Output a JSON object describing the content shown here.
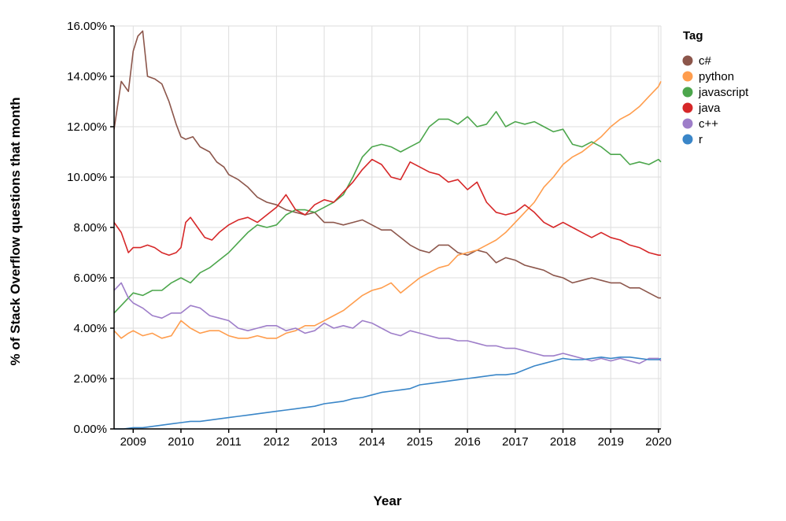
{
  "chart_data": {
    "type": "line",
    "title": "",
    "xlabel": "Year",
    "ylabel": "% of Stack Overflow questions that month",
    "xlim": [
      2008.6,
      2020.05
    ],
    "ylim": [
      0,
      16
    ],
    "x_ticks": [
      "2009",
      "2010",
      "2011",
      "2012",
      "2013",
      "2014",
      "2015",
      "2016",
      "2017",
      "2018",
      "2019",
      "2020"
    ],
    "y_ticks": [
      "0.00%",
      "2.00%",
      "4.00%",
      "6.00%",
      "8.00%",
      "10.00%",
      "12.00%",
      "14.00%",
      "16.00%"
    ],
    "grid": true,
    "legend": {
      "title": "Tag",
      "position": "right"
    },
    "series": [
      {
        "name": "c#",
        "color": "#8c564b",
        "x": [
          2008.6,
          2008.75,
          2008.9,
          2009.0,
          2009.1,
          2009.2,
          2009.3,
          2009.45,
          2009.6,
          2009.75,
          2009.9,
          2010.0,
          2010.1,
          2010.25,
          2010.4,
          2010.6,
          2010.75,
          2010.9,
          2011.0,
          2011.2,
          2011.4,
          2011.6,
          2011.8,
          2012.0,
          2012.2,
          2012.4,
          2012.6,
          2012.8,
          2013.0,
          2013.2,
          2013.4,
          2013.6,
          2013.8,
          2014.0,
          2014.2,
          2014.4,
          2014.6,
          2014.8,
          2015.0,
          2015.2,
          2015.4,
          2015.6,
          2015.8,
          2016.0,
          2016.2,
          2016.4,
          2016.6,
          2016.8,
          2017.0,
          2017.2,
          2017.4,
          2017.6,
          2017.8,
          2018.0,
          2018.2,
          2018.4,
          2018.6,
          2018.8,
          2019.0,
          2019.2,
          2019.4,
          2019.6,
          2019.8,
          2020.0,
          2020.05
        ],
        "values": [
          11.9,
          13.8,
          13.4,
          15.0,
          15.6,
          15.8,
          14.0,
          13.9,
          13.7,
          13.0,
          12.1,
          11.6,
          11.5,
          11.6,
          11.2,
          11.0,
          10.6,
          10.4,
          10.1,
          9.9,
          9.6,
          9.2,
          9.0,
          8.9,
          8.7,
          8.6,
          8.5,
          8.6,
          8.2,
          8.2,
          8.1,
          8.2,
          8.3,
          8.1,
          7.9,
          7.9,
          7.6,
          7.3,
          7.1,
          7.0,
          7.3,
          7.3,
          7.0,
          6.9,
          7.1,
          7.0,
          6.6,
          6.8,
          6.7,
          6.5,
          6.4,
          6.3,
          6.1,
          6.0,
          5.8,
          5.9,
          6.0,
          5.9,
          5.8,
          5.8,
          5.6,
          5.6,
          5.4,
          5.2,
          5.2
        ]
      },
      {
        "name": "python",
        "color": "#ff9d4d",
        "x": [
          2008.6,
          2008.75,
          2008.9,
          2009.0,
          2009.2,
          2009.4,
          2009.6,
          2009.8,
          2010.0,
          2010.2,
          2010.4,
          2010.6,
          2010.8,
          2011.0,
          2011.2,
          2011.4,
          2011.6,
          2011.8,
          2012.0,
          2012.2,
          2012.4,
          2012.6,
          2012.8,
          2013.0,
          2013.2,
          2013.4,
          2013.6,
          2013.8,
          2014.0,
          2014.2,
          2014.4,
          2014.6,
          2014.8,
          2015.0,
          2015.2,
          2015.4,
          2015.6,
          2015.8,
          2016.0,
          2016.2,
          2016.4,
          2016.6,
          2016.8,
          2017.0,
          2017.2,
          2017.4,
          2017.6,
          2017.8,
          2018.0,
          2018.2,
          2018.4,
          2018.6,
          2018.8,
          2019.0,
          2019.2,
          2019.4,
          2019.6,
          2019.8,
          2020.0,
          2020.05
        ],
        "values": [
          3.9,
          3.6,
          3.8,
          3.9,
          3.7,
          3.8,
          3.6,
          3.7,
          4.3,
          4.0,
          3.8,
          3.9,
          3.9,
          3.7,
          3.6,
          3.6,
          3.7,
          3.6,
          3.6,
          3.8,
          3.9,
          4.1,
          4.1,
          4.3,
          4.5,
          4.7,
          5.0,
          5.3,
          5.5,
          5.6,
          5.8,
          5.4,
          5.7,
          6.0,
          6.2,
          6.4,
          6.5,
          6.9,
          7.0,
          7.1,
          7.3,
          7.5,
          7.8,
          8.2,
          8.6,
          9.0,
          9.6,
          10.0,
          10.5,
          10.8,
          11.0,
          11.3,
          11.6,
          12.0,
          12.3,
          12.5,
          12.8,
          13.2,
          13.6,
          13.8
        ]
      },
      {
        "name": "javascript",
        "color": "#4ca64c",
        "x": [
          2008.6,
          2008.75,
          2008.9,
          2009.0,
          2009.2,
          2009.4,
          2009.6,
          2009.8,
          2010.0,
          2010.2,
          2010.4,
          2010.6,
          2010.8,
          2011.0,
          2011.2,
          2011.4,
          2011.6,
          2011.8,
          2012.0,
          2012.2,
          2012.4,
          2012.6,
          2012.8,
          2013.0,
          2013.2,
          2013.4,
          2013.6,
          2013.8,
          2014.0,
          2014.2,
          2014.4,
          2014.6,
          2014.8,
          2015.0,
          2015.2,
          2015.4,
          2015.6,
          2015.8,
          2016.0,
          2016.2,
          2016.4,
          2016.6,
          2016.8,
          2017.0,
          2017.2,
          2017.4,
          2017.6,
          2017.8,
          2018.0,
          2018.2,
          2018.4,
          2018.6,
          2018.8,
          2019.0,
          2019.2,
          2019.4,
          2019.6,
          2019.8,
          2020.0,
          2020.05
        ],
        "values": [
          4.6,
          4.9,
          5.2,
          5.4,
          5.3,
          5.5,
          5.5,
          5.8,
          6.0,
          5.8,
          6.2,
          6.4,
          6.7,
          7.0,
          7.4,
          7.8,
          8.1,
          8.0,
          8.1,
          8.5,
          8.7,
          8.7,
          8.6,
          8.8,
          9.0,
          9.3,
          10.0,
          10.8,
          11.2,
          11.3,
          11.2,
          11.0,
          11.2,
          11.4,
          12.0,
          12.3,
          12.3,
          12.1,
          12.4,
          12.0,
          12.1,
          12.6,
          12.0,
          12.2,
          12.1,
          12.2,
          12.0,
          11.8,
          11.9,
          11.3,
          11.2,
          11.4,
          11.2,
          10.9,
          10.9,
          10.5,
          10.6,
          10.5,
          10.7,
          10.6
        ]
      },
      {
        "name": "java",
        "color": "#d62728",
        "x": [
          2008.6,
          2008.75,
          2008.9,
          2009.0,
          2009.15,
          2009.3,
          2009.45,
          2009.6,
          2009.75,
          2009.9,
          2010.0,
          2010.1,
          2010.2,
          2010.35,
          2010.5,
          2010.65,
          2010.8,
          2011.0,
          2011.2,
          2011.4,
          2011.6,
          2011.8,
          2012.0,
          2012.2,
          2012.4,
          2012.6,
          2012.8,
          2013.0,
          2013.2,
          2013.4,
          2013.6,
          2013.8,
          2014.0,
          2014.2,
          2014.4,
          2014.6,
          2014.8,
          2015.0,
          2015.2,
          2015.4,
          2015.6,
          2015.8,
          2016.0,
          2016.2,
          2016.4,
          2016.6,
          2016.8,
          2017.0,
          2017.2,
          2017.4,
          2017.6,
          2017.8,
          2018.0,
          2018.2,
          2018.4,
          2018.6,
          2018.8,
          2019.0,
          2019.2,
          2019.4,
          2019.6,
          2019.8,
          2020.0,
          2020.05
        ],
        "values": [
          8.2,
          7.8,
          7.0,
          7.2,
          7.2,
          7.3,
          7.2,
          7.0,
          6.9,
          7.0,
          7.2,
          8.2,
          8.4,
          8.0,
          7.6,
          7.5,
          7.8,
          8.1,
          8.3,
          8.4,
          8.2,
          8.5,
          8.8,
          9.3,
          8.7,
          8.5,
          8.9,
          9.1,
          9.0,
          9.4,
          9.8,
          10.3,
          10.7,
          10.5,
          10.0,
          9.9,
          10.6,
          10.4,
          10.2,
          10.1,
          9.8,
          9.9,
          9.5,
          9.8,
          9.0,
          8.6,
          8.5,
          8.6,
          8.9,
          8.6,
          8.2,
          8.0,
          8.2,
          8.0,
          7.8,
          7.6,
          7.8,
          7.6,
          7.5,
          7.3,
          7.2,
          7.0,
          6.9,
          6.9
        ]
      },
      {
        "name": "c++",
        "color": "#9e7ec9",
        "x": [
          2008.6,
          2008.75,
          2008.9,
          2009.0,
          2009.2,
          2009.4,
          2009.6,
          2009.8,
          2010.0,
          2010.2,
          2010.4,
          2010.6,
          2010.8,
          2011.0,
          2011.2,
          2011.4,
          2011.6,
          2011.8,
          2012.0,
          2012.2,
          2012.4,
          2012.6,
          2012.8,
          2013.0,
          2013.2,
          2013.4,
          2013.6,
          2013.8,
          2014.0,
          2014.2,
          2014.4,
          2014.6,
          2014.8,
          2015.0,
          2015.2,
          2015.4,
          2015.6,
          2015.8,
          2016.0,
          2016.2,
          2016.4,
          2016.6,
          2016.8,
          2017.0,
          2017.2,
          2017.4,
          2017.6,
          2017.8,
          2018.0,
          2018.2,
          2018.4,
          2018.6,
          2018.8,
          2019.0,
          2019.2,
          2019.4,
          2019.6,
          2019.8,
          2020.0,
          2020.05
        ],
        "values": [
          5.5,
          5.8,
          5.2,
          5.0,
          4.8,
          4.5,
          4.4,
          4.6,
          4.6,
          4.9,
          4.8,
          4.5,
          4.4,
          4.3,
          4.0,
          3.9,
          4.0,
          4.1,
          4.1,
          3.9,
          4.0,
          3.8,
          3.9,
          4.2,
          4.0,
          4.1,
          4.0,
          4.3,
          4.2,
          4.0,
          3.8,
          3.7,
          3.9,
          3.8,
          3.7,
          3.6,
          3.6,
          3.5,
          3.5,
          3.4,
          3.3,
          3.3,
          3.2,
          3.2,
          3.1,
          3.0,
          2.9,
          2.9,
          3.0,
          2.9,
          2.8,
          2.7,
          2.8,
          2.7,
          2.8,
          2.7,
          2.6,
          2.8,
          2.8,
          2.7
        ]
      },
      {
        "name": "r",
        "color": "#3a86c8",
        "x": [
          2008.6,
          2008.8,
          2009.0,
          2009.2,
          2009.4,
          2009.6,
          2009.8,
          2010.0,
          2010.2,
          2010.4,
          2010.6,
          2010.8,
          2011.0,
          2011.2,
          2011.4,
          2011.6,
          2011.8,
          2012.0,
          2012.2,
          2012.4,
          2012.6,
          2012.8,
          2013.0,
          2013.2,
          2013.4,
          2013.6,
          2013.8,
          2014.0,
          2014.2,
          2014.4,
          2014.6,
          2014.8,
          2015.0,
          2015.2,
          2015.4,
          2015.6,
          2015.8,
          2016.0,
          2016.2,
          2016.4,
          2016.6,
          2016.8,
          2017.0,
          2017.2,
          2017.4,
          2017.6,
          2017.8,
          2018.0,
          2018.2,
          2018.4,
          2018.6,
          2018.8,
          2019.0,
          2019.2,
          2019.4,
          2019.6,
          2019.8,
          2020.0,
          2020.05
        ],
        "values": [
          0.0,
          0.0,
          0.05,
          0.05,
          0.1,
          0.15,
          0.2,
          0.25,
          0.3,
          0.3,
          0.35,
          0.4,
          0.45,
          0.5,
          0.55,
          0.6,
          0.65,
          0.7,
          0.75,
          0.8,
          0.85,
          0.9,
          1.0,
          1.05,
          1.1,
          1.2,
          1.25,
          1.35,
          1.45,
          1.5,
          1.55,
          1.6,
          1.75,
          1.8,
          1.85,
          1.9,
          1.95,
          2.0,
          2.05,
          2.1,
          2.15,
          2.15,
          2.2,
          2.35,
          2.5,
          2.6,
          2.7,
          2.8,
          2.75,
          2.75,
          2.8,
          2.85,
          2.8,
          2.85,
          2.85,
          2.8,
          2.75,
          2.75,
          2.8
        ]
      }
    ]
  }
}
